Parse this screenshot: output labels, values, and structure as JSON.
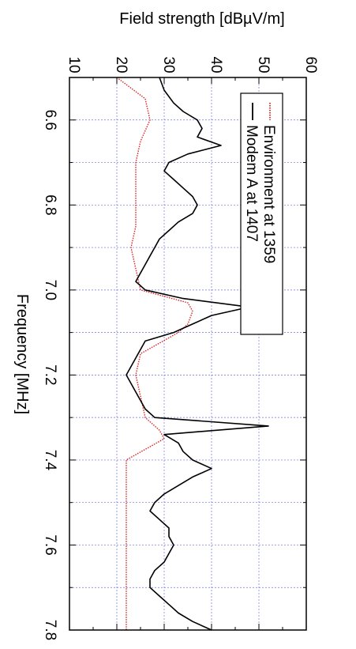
{
  "chart_data": {
    "type": "line",
    "orientation": "rotated-90-clockwise",
    "xlabel": "Frequency [MHz]",
    "ylabel": "Field strength [dBµV/m]",
    "xlim": [
      6.5,
      7.8
    ],
    "ylim": [
      10,
      60
    ],
    "x_ticks": [
      "6.6",
      "6.8",
      "7.0",
      "7.2",
      "7.4",
      "7.6",
      "7.8"
    ],
    "y_ticks": [
      "10",
      "20",
      "30",
      "40",
      "50",
      "60"
    ],
    "grid": true,
    "legend_position": "top-right",
    "series": [
      {
        "name": "Environment at 1359",
        "color": "#e02020",
        "style": "dotted",
        "x": [
          6.5,
          6.55,
          6.6,
          6.65,
          6.7,
          6.75,
          6.8,
          6.85,
          6.9,
          6.95,
          7.0,
          7.03,
          7.05,
          7.08,
          7.1,
          7.15,
          7.2,
          7.25,
          7.3,
          7.33,
          7.35,
          7.4,
          7.45,
          7.5,
          7.55,
          7.6,
          7.65,
          7.7,
          7.75,
          7.8
        ],
        "values": [
          20,
          26,
          27,
          25,
          24,
          24,
          24,
          24,
          23,
          24,
          25,
          35,
          36,
          35,
          33,
          25,
          24,
          25,
          26,
          29,
          30,
          22,
          22,
          22,
          22,
          22,
          22,
          22,
          22,
          22
        ]
      },
      {
        "name": "Modem A at 1407",
        "color": "#000000",
        "style": "solid",
        "x": [
          6.5,
          6.53,
          6.56,
          6.58,
          6.6,
          6.62,
          6.64,
          6.66,
          6.68,
          6.7,
          6.72,
          6.74,
          6.76,
          6.78,
          6.8,
          6.82,
          6.84,
          6.86,
          6.88,
          6.9,
          6.92,
          6.94,
          6.96,
          6.98,
          7.0,
          7.02,
          7.04,
          7.06,
          7.08,
          7.1,
          7.12,
          7.14,
          7.16,
          7.18,
          7.2,
          7.22,
          7.24,
          7.26,
          7.28,
          7.3,
          7.32,
          7.34,
          7.36,
          7.38,
          7.4,
          7.42,
          7.44,
          7.46,
          7.48,
          7.5,
          7.52,
          7.54,
          7.56,
          7.58,
          7.6,
          7.62,
          7.64,
          7.66,
          7.68,
          7.7,
          7.72,
          7.74,
          7.76,
          7.78,
          7.8
        ],
        "values": [
          29,
          30,
          32,
          34,
          37,
          38,
          37,
          42,
          35,
          31,
          30,
          32,
          34,
          36,
          37,
          36,
          33,
          31,
          29,
          28,
          27,
          26,
          25,
          24,
          26,
          34,
          48,
          40,
          36,
          32,
          26,
          25,
          24,
          23,
          22,
          23,
          24,
          25,
          26,
          28,
          52,
          30,
          33,
          34,
          36,
          40,
          36,
          33,
          30,
          28,
          27,
          29,
          31,
          31,
          32,
          31,
          30,
          28,
          27,
          27,
          29,
          31,
          33,
          36,
          40
        ]
      }
    ]
  }
}
